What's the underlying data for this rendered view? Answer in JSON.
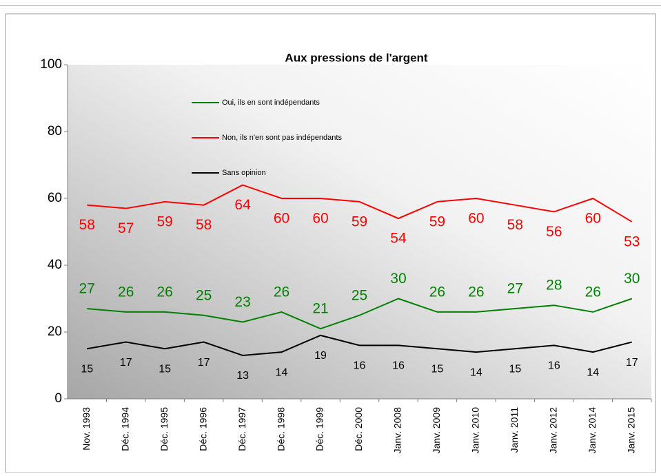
{
  "chart_data": {
    "type": "line",
    "title": "Aux pressions de l'argent",
    "categories": [
      "Nov. 1993",
      "Déc. 1994",
      "Déc. 1995",
      "Déc. 1996",
      "Déc. 1997",
      "Déc. 1998",
      "Déc. 1999",
      "Déc. 2000",
      "Janv. 2008",
      "Janv. 2009",
      "Janv. 2010",
      "Janv. 2011",
      "Janv. 2012",
      "Janv. 2014",
      "Janv. 2015"
    ],
    "series": [
      {
        "name": "Oui, ils en sont indépendants",
        "color": "#008000",
        "values": [
          27,
          26,
          26,
          25,
          23,
          26,
          21,
          25,
          30,
          26,
          26,
          27,
          28,
          26,
          30
        ]
      },
      {
        "name": "Non, ils n'en sont pas indépendants",
        "color": "#ff0000",
        "values": [
          58,
          57,
          59,
          58,
          64,
          60,
          60,
          59,
          54,
          59,
          60,
          58,
          56,
          60,
          53
        ]
      },
      {
        "name": "Sans opinion",
        "color": "#000000",
        "values": [
          15,
          17,
          15,
          17,
          13,
          14,
          19,
          16,
          16,
          15,
          14,
          15,
          16,
          14,
          17
        ]
      }
    ],
    "ylim": [
      0,
      100
    ],
    "yticks": [
      0,
      20,
      40,
      60,
      80,
      100
    ],
    "legend": "top-left"
  }
}
